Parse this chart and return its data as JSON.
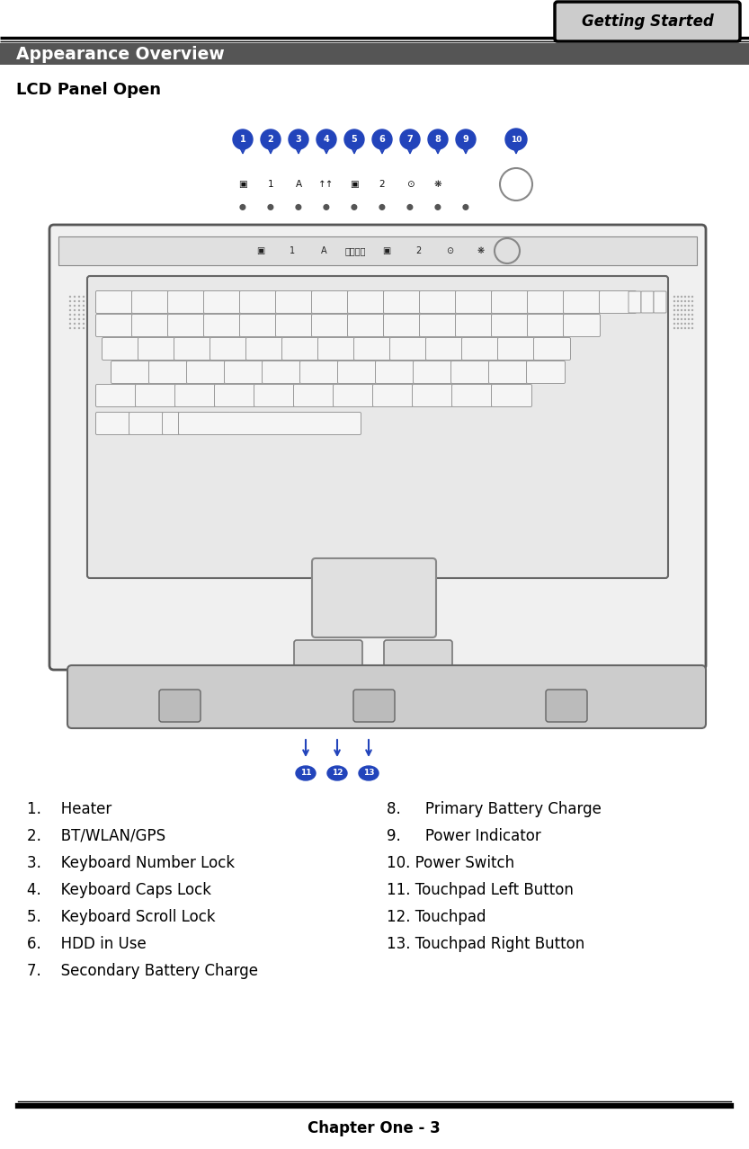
{
  "title_tab": "Getting Started",
  "section_title": "Appearance Overview",
  "subsection": "LCD Panel Open",
  "footer": "Chapter One - 3",
  "left_items": [
    "1.  Heater",
    "2.  BT/WLAN/GPS",
    "3.  Keyboard Number Lock",
    "4.  Keyboard Caps Lock",
    "5.  Keyboard Scroll Lock",
    "6.  HDD in Use",
    "7.  Secondary Battery Charge"
  ],
  "right_items": [
    "8.   Primary Battery Charge",
    "9.   Power Indicator",
    "10. Power Switch",
    "11. Touchpad Left Button",
    "12. Touchpad",
    "13. Touchpad Right Button"
  ],
  "bg_color": "#ffffff",
  "header_line_color": "#000000",
  "section_bg_color": "#555555",
  "section_text_color": "#ffffff",
  "tab_bg_color": "#cccccc",
  "tab_border_color": "#000000",
  "tab_text_color": "#000000",
  "footer_line_color": "#000000",
  "body_text_color": "#000000"
}
